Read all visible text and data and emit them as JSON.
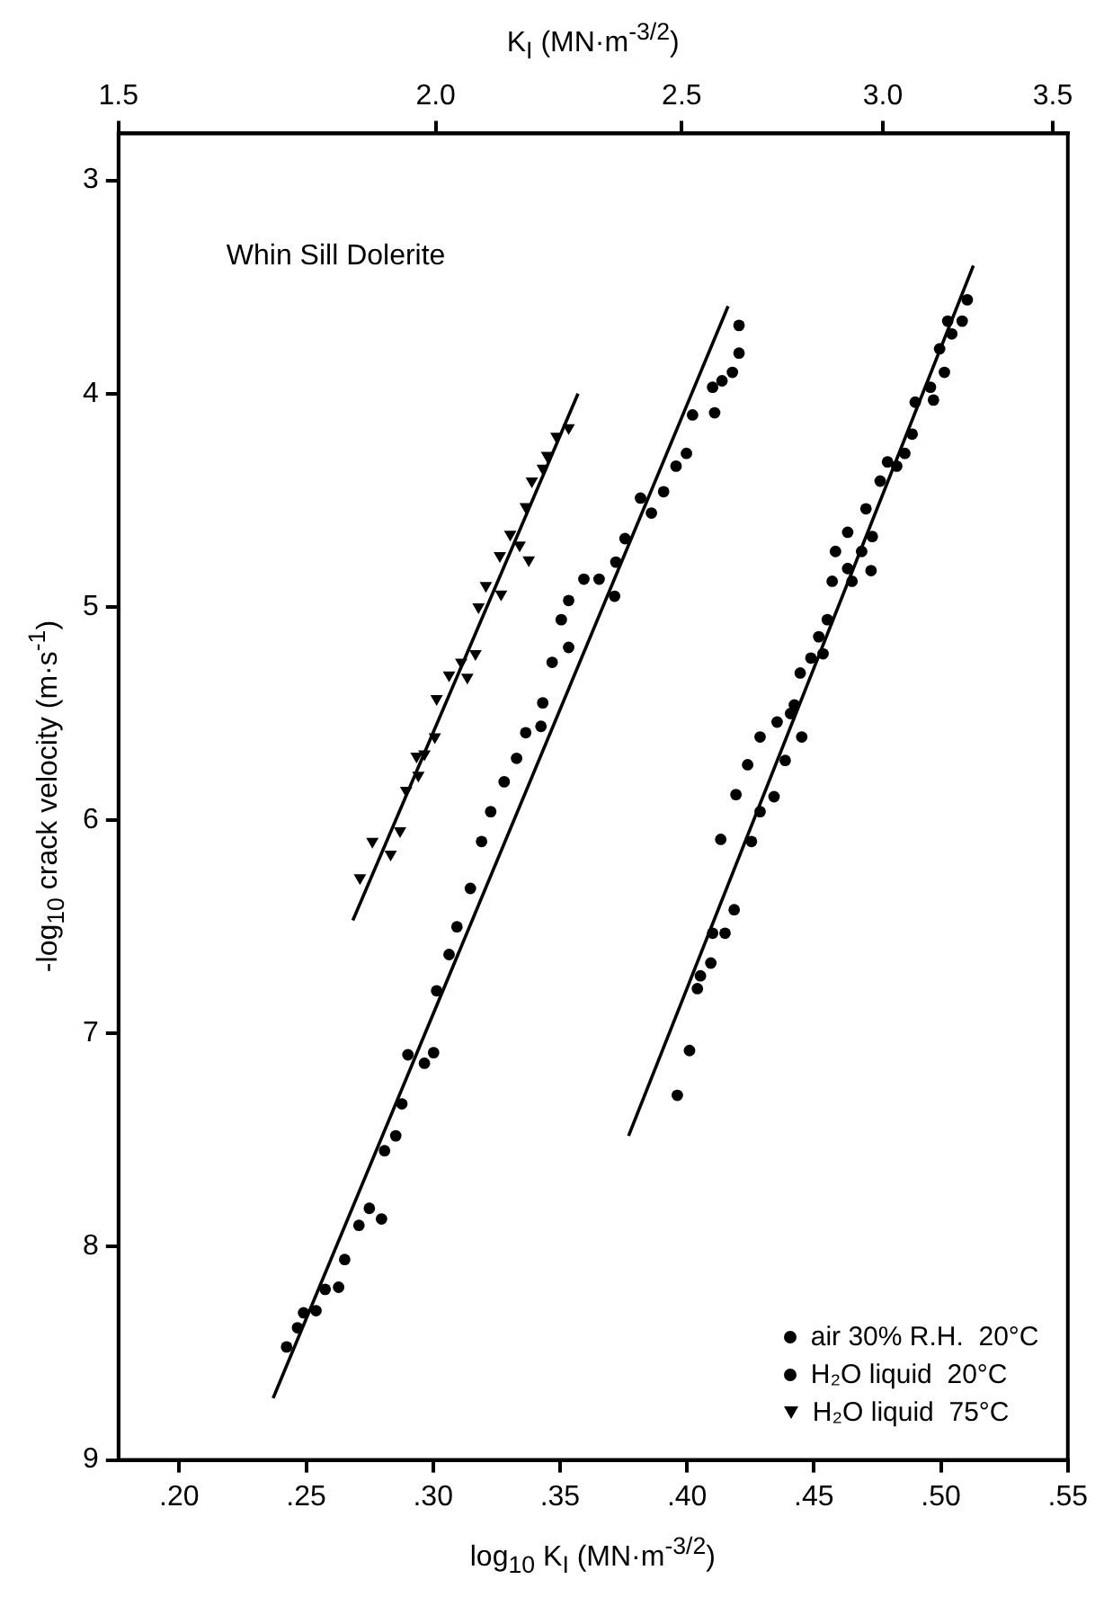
{
  "chart_data": {
    "type": "scatter",
    "xlabel": "log$_{10}$ K$_{I}$ (MN·m$^{-3/2}$)",
    "x2label": "K$_{I}$ (MN·m$^{-3/2}$)",
    "ylabel": "-log$_{10}$ crack velocity (m·s$^{-1}$)",
    "annotations": [
      "Whin Sill Dolerite"
    ],
    "xlim": [
      0.1761,
      0.55
    ],
    "xticks": [
      {
        "value": 0.2,
        "label": ".20"
      },
      {
        "value": 0.25,
        "label": ".25"
      },
      {
        "value": 0.3,
        "label": ".30"
      },
      {
        "value": 0.35,
        "label": ".35"
      },
      {
        "value": 0.4,
        "label": ".40"
      },
      {
        "value": 0.45,
        "label": ".45"
      },
      {
        "value": 0.5,
        "label": ".50"
      },
      {
        "value": 0.55,
        "label": ".55"
      }
    ],
    "x2lim": [
      1.5,
      3.548
    ],
    "log": "x2",
    "x2ticks": [
      1.5,
      {
        "value": 2,
        "label": "2.0"
      },
      2.5,
      {
        "value": 3,
        "label": "3.0"
      },
      3.5
    ],
    "ylim": [
      9,
      2.78
    ],
    "yticks": [
      3,
      4,
      5,
      6,
      7,
      8,
      9
    ],
    "legend": "bottom right",
    "marker": "circle",
    "series": [
      {
        "name": "air 30% R.H.  20°C",
        "color": "#000000",
        "x": [
          0.5104,
          0.5084,
          0.5027,
          0.5043,
          0.4995,
          0.5014,
          0.4959,
          0.4971,
          0.4899,
          0.4887,
          0.4858,
          0.4826,
          0.479,
          0.4761,
          0.4705,
          0.473,
          0.4688,
          0.4633,
          0.4585,
          0.4633,
          0.4572,
          0.465,
          0.4725,
          0.4553,
          0.4519,
          0.4536,
          0.4488,
          0.4446,
          0.4423,
          0.4355,
          0.4288,
          0.4452,
          0.4408,
          0.4387,
          0.4239,
          0.4343,
          0.4193,
          0.4288,
          0.4254,
          0.4133,
          0.4186,
          0.4101,
          0.415,
          0.4094,
          0.4053,
          0.4041,
          0.401,
          0.3962
        ],
        "values": [
          3.56,
          3.66,
          3.66,
          3.72,
          3.79,
          3.9,
          3.97,
          4.03,
          4.04,
          4.19,
          4.28,
          4.34,
          4.32,
          4.41,
          4.54,
          4.67,
          4.74,
          4.65,
          4.74,
          4.82,
          4.88,
          4.88,
          4.83,
          5.06,
          5.14,
          5.22,
          5.24,
          5.31,
          5.46,
          5.54,
          5.61,
          5.61,
          5.5,
          5.72,
          5.74,
          5.89,
          5.88,
          5.96,
          6.1,
          6.09,
          6.42,
          6.53,
          6.53,
          6.67,
          6.73,
          6.79,
          7.08,
          7.29
        ]
      },
      {
        "name": "H₂O liquid  20°C",
        "color": "#000000",
        "x": [
          0.4205,
          0.4205,
          0.4179,
          0.4138,
          0.4101,
          0.4109,
          0.4022,
          0.3998,
          0.3957,
          0.3908,
          0.386,
          0.3817,
          0.3756,
          0.372,
          0.3715,
          0.3654,
          0.3594,
          0.3534,
          0.3505,
          0.3534,
          0.3469,
          0.3432,
          0.3425,
          0.3365,
          0.3329,
          0.328,
          0.3227,
          0.3191,
          0.3147,
          0.3094,
          0.3063,
          0.3014,
          0.2901,
          0.2966,
          0.3002,
          0.2877,
          0.2853,
          0.2809,
          0.2749,
          0.2708,
          0.2797,
          0.2652,
          0.2628,
          0.2575,
          0.2539,
          0.249,
          0.2466,
          0.2423
        ],
        "values": [
          3.68,
          3.81,
          3.9,
          3.94,
          3.97,
          4.09,
          4.1,
          4.28,
          4.34,
          4.46,
          4.56,
          4.49,
          4.68,
          4.79,
          4.95,
          4.87,
          4.87,
          4.97,
          5.06,
          5.19,
          5.26,
          5.45,
          5.56,
          5.59,
          5.71,
          5.82,
          5.96,
          6.1,
          6.32,
          6.5,
          6.63,
          6.8,
          7.1,
          7.14,
          7.09,
          7.33,
          7.48,
          7.55,
          7.82,
          7.9,
          7.87,
          8.06,
          8.19,
          8.2,
          8.3,
          8.31,
          8.38,
          8.47
        ]
      },
      {
        "name": "H₂O liquid  75°C",
        "color": "#000000",
        "marker": "triangle",
        "x": [
          0.3534,
          0.3486,
          0.3449,
          0.3432,
          0.3389,
          0.3365,
          0.3341,
          0.3377,
          0.3304,
          0.3263,
          0.3268,
          0.3208,
          0.3179,
          0.3167,
          0.3111,
          0.3135,
          0.3063,
          0.3014,
          0.3007,
          0.2966,
          0.2935,
          0.2942,
          0.2894,
          0.287,
          0.2833,
          0.2761,
          0.2712
        ],
        "values": [
          4.16,
          4.2,
          4.29,
          4.35,
          4.41,
          4.53,
          4.71,
          4.78,
          4.66,
          4.76,
          4.94,
          4.9,
          5.0,
          5.22,
          5.26,
          5.33,
          5.32,
          5.43,
          5.61,
          5.69,
          5.7,
          5.79,
          5.86,
          6.05,
          6.16,
          6.1,
          6.27
        ]
      },
      {
        "type": "line",
        "marker": "none",
        "color": "#000000",
        "x": [
          0.377,
          0.5128
        ],
        "values": [
          7.48,
          3.4
        ]
      },
      {
        "type": "line",
        "marker": "none",
        "color": "#000000",
        "x": [
          0.237,
          0.4162
        ],
        "values": [
          8.71,
          3.59
        ]
      },
      {
        "type": "line",
        "marker": "none",
        "color": "#000000",
        "x": [
          0.2684,
          0.3571
        ],
        "values": [
          6.47,
          4.0
        ]
      }
    ]
  }
}
